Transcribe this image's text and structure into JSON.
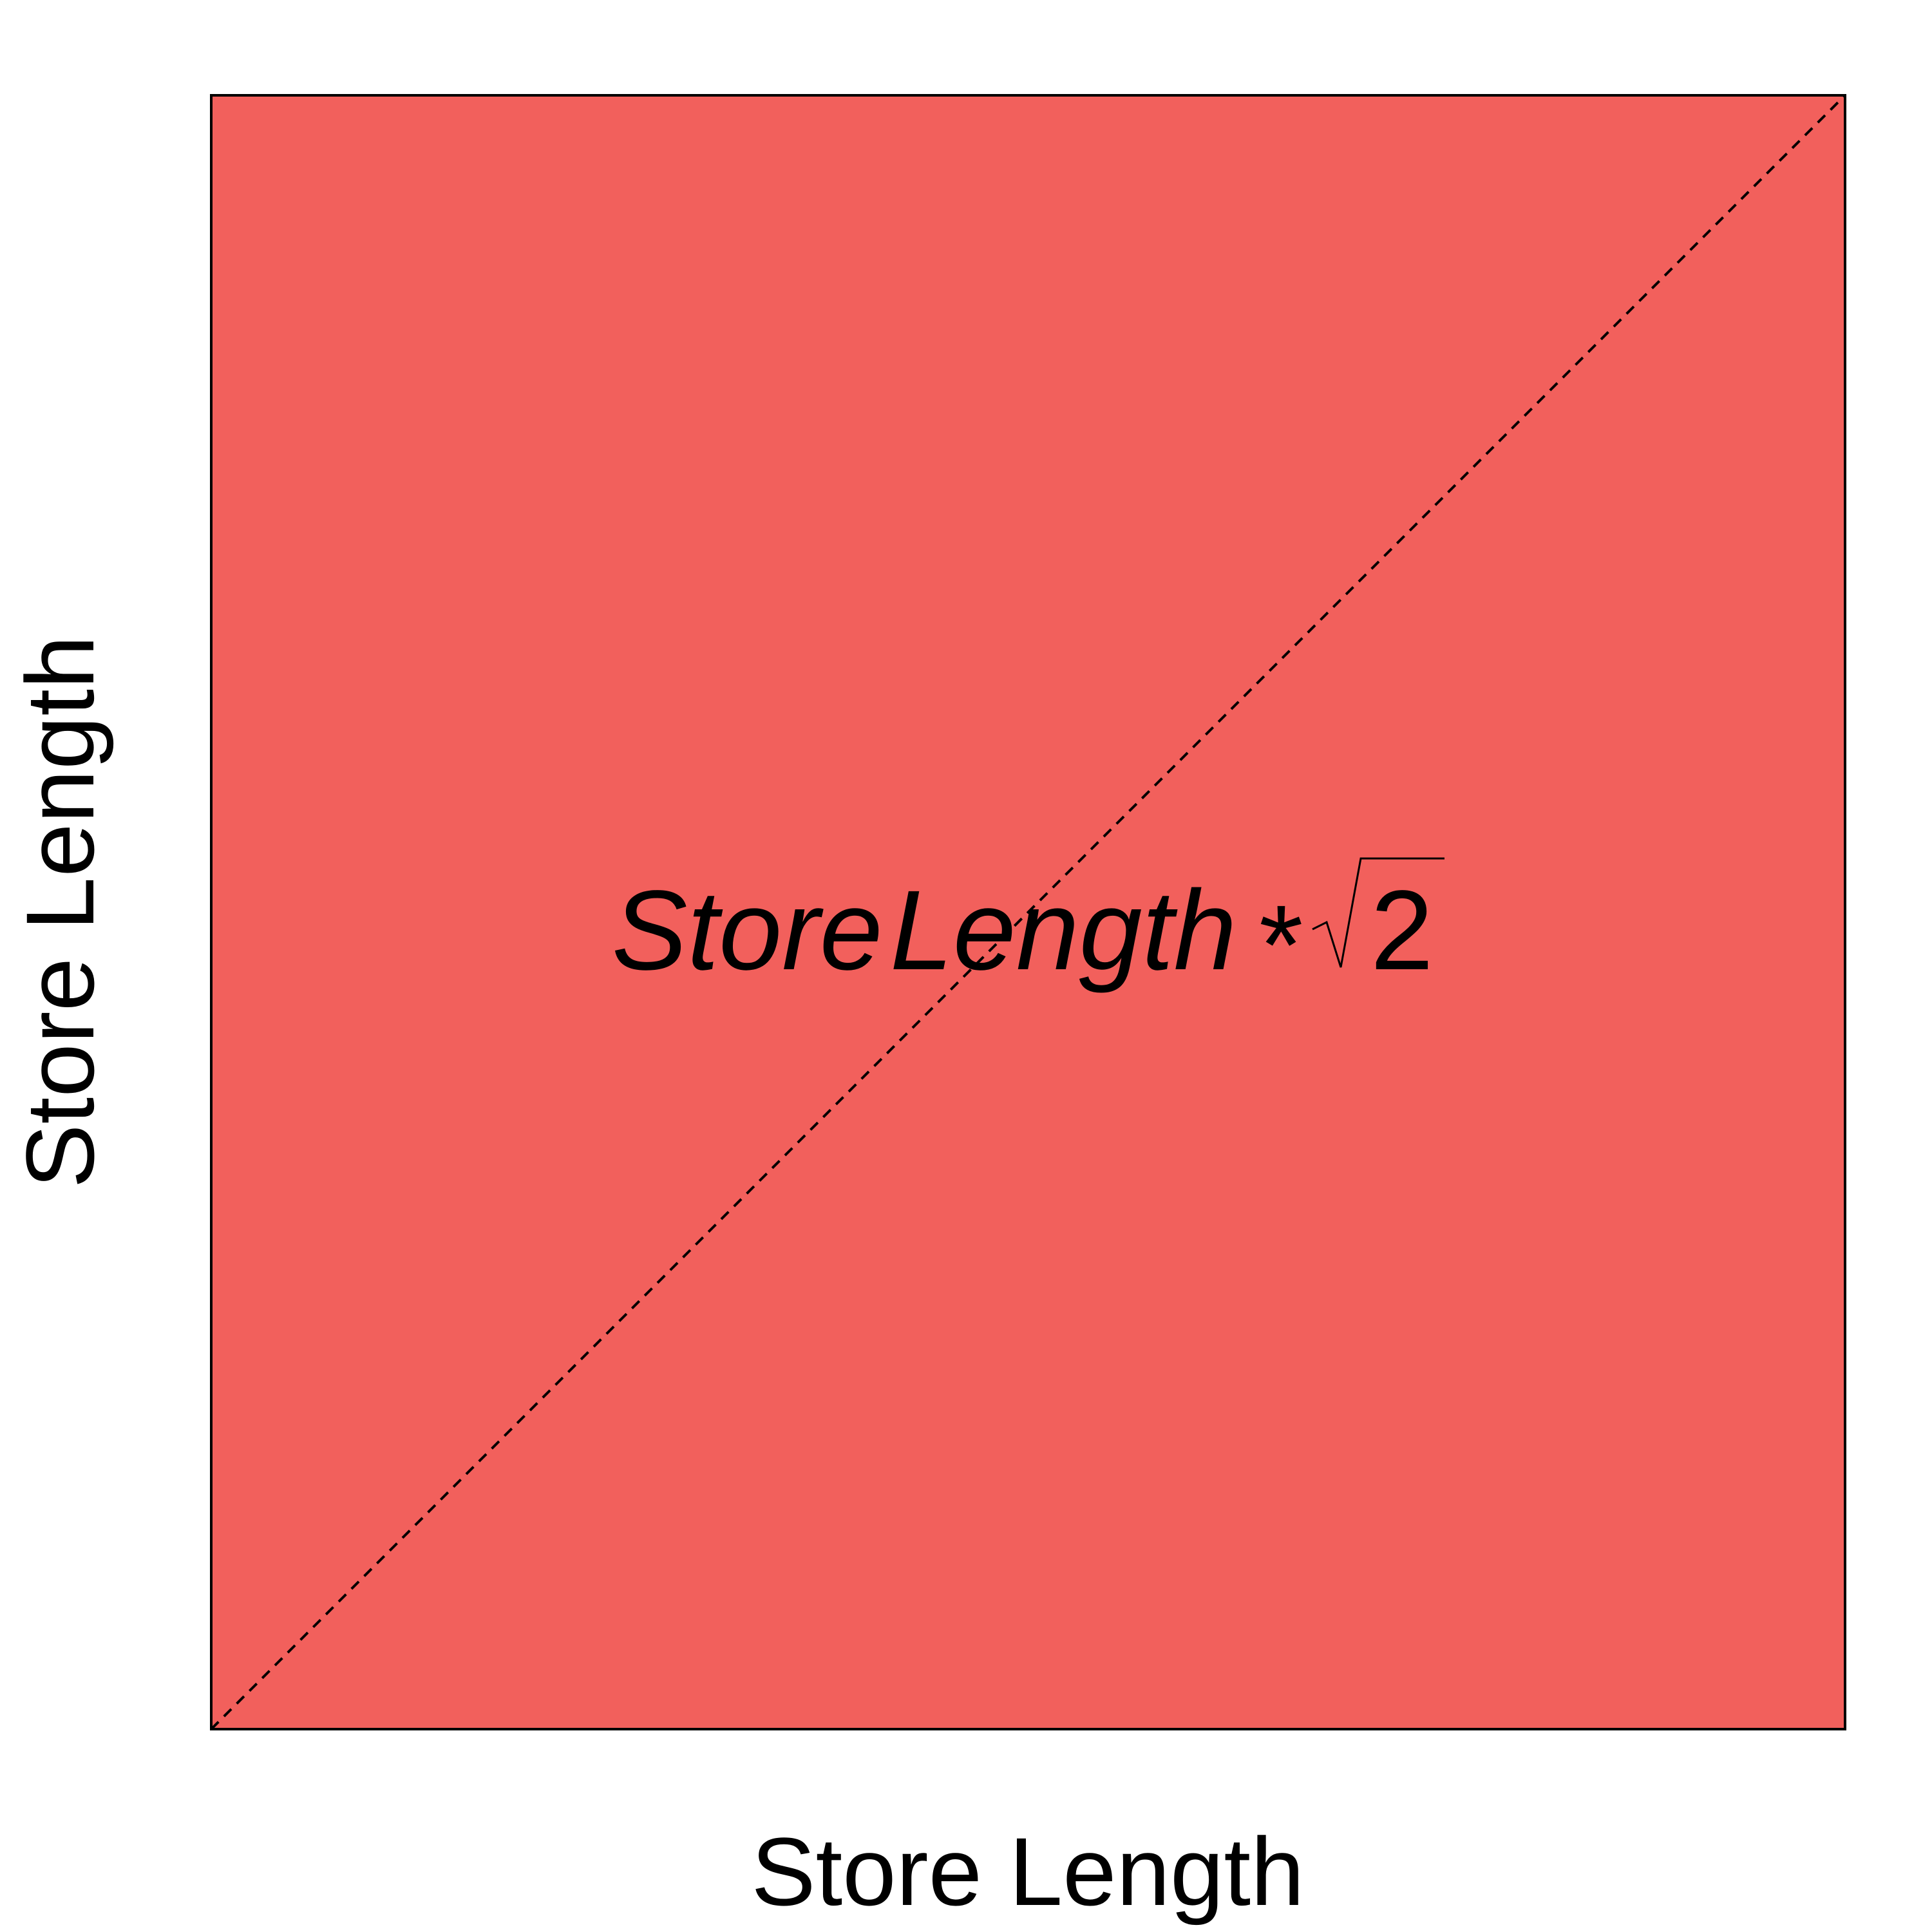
{
  "diagram": {
    "square_fill": "#F2605C",
    "border_color": "#000000",
    "diagonal_style": "dashed",
    "x_axis_label": "Store Length",
    "y_axis_label": "Store Length",
    "formula": {
      "term_1": "Store",
      "term_2": "Length",
      "operator": "*",
      "radical_symbol": "√",
      "radicand": "2"
    }
  }
}
